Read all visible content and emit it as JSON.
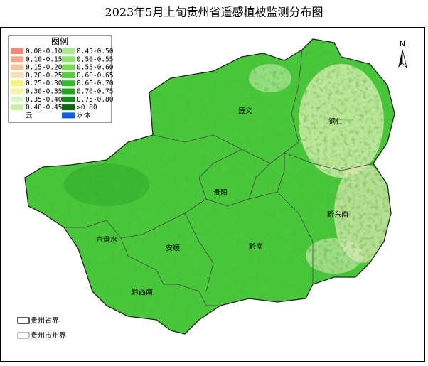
{
  "title": "2023年5月上旬贵州省遥感植被监测分布图",
  "legend": {
    "title": "图例",
    "items": [
      {
        "label": "0.00-0.10",
        "color": "#f08c78"
      },
      {
        "label": "0.10-0.15",
        "color": "#f4a888"
      },
      {
        "label": "0.15-0.20",
        "color": "#f7c59c"
      },
      {
        "label": "0.20-0.25",
        "color": "#f8dcb4"
      },
      {
        "label": "0.25-0.30",
        "color": "#f5f07a"
      },
      {
        "label": "0.30-0.35",
        "color": "#f4f4a8"
      },
      {
        "label": "0.35-0.40",
        "color": "#d6f4c8"
      },
      {
        "label": "0.40-0.45",
        "color": "#c8f0a0"
      },
      {
        "label": "云",
        "color": "#ffffff"
      },
      {
        "label": "0.45-0.50",
        "color": "#a8ec8c"
      },
      {
        "label": "0.50-0.55",
        "color": "#8ee66e"
      },
      {
        "label": "0.55-0.60",
        "color": "#78de50"
      },
      {
        "label": "0.60-0.65",
        "color": "#50d23c"
      },
      {
        "label": "0.65-0.70",
        "color": "#34c02a"
      },
      {
        "label": "0.70-0.75",
        "color": "#20a81e"
      },
      {
        "label": "0.75-0.80",
        "color": "#128c14"
      },
      {
        "label": ">0.80",
        "color": "#066a0a"
      },
      {
        "label": "水体",
        "color": "#1060e0"
      }
    ]
  },
  "regions": [
    {
      "label": "遵义"
    },
    {
      "label": "铜仁"
    },
    {
      "label": "贵阳"
    },
    {
      "label": "黔东南"
    },
    {
      "label": "安顺"
    },
    {
      "label": "黔南"
    },
    {
      "label": "黔西南"
    },
    {
      "label": "六盘水"
    }
  ],
  "north": "N",
  "boundaries": [
    {
      "label": "贵州省界"
    },
    {
      "label": "贵州市州界"
    }
  ]
}
